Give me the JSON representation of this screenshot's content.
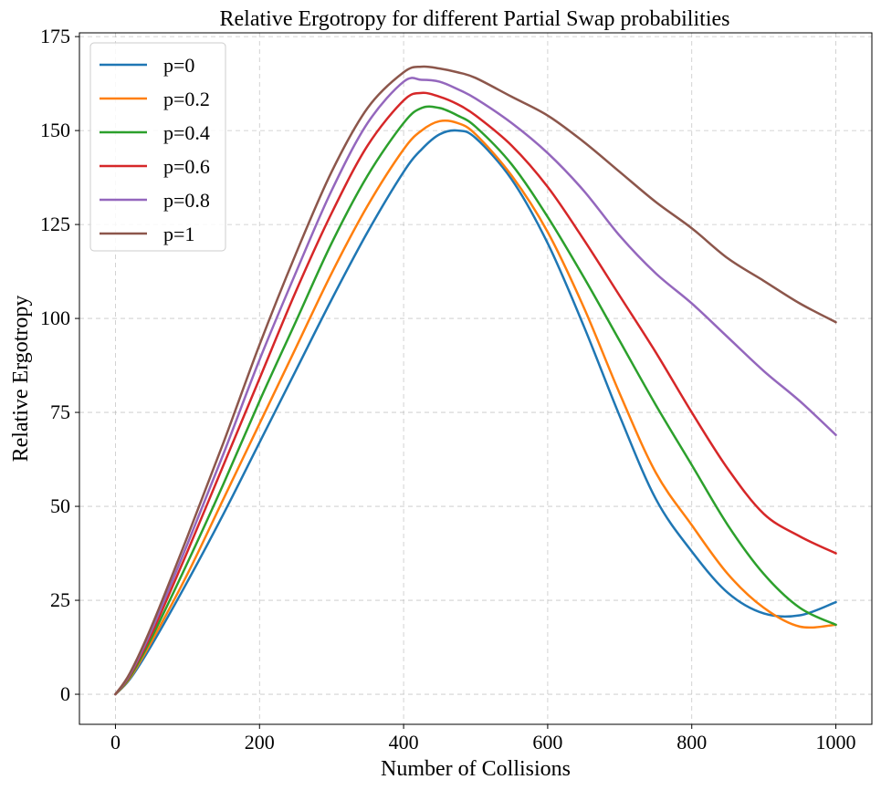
{
  "chart_data": {
    "type": "line",
    "title": "Relative Ergotropy for different Partial Swap probabilities",
    "xlabel": "Number of Collisions",
    "ylabel": "Relative Ergotropy",
    "xlim": [
      -50,
      1050
    ],
    "ylim": [
      -8,
      176
    ],
    "xticks": [
      0,
      200,
      400,
      600,
      800,
      1000
    ],
    "xtick_labels": [
      "0",
      "200",
      "400",
      "600",
      "800",
      "1000"
    ],
    "yticks": [
      0,
      25,
      50,
      75,
      100,
      125,
      150,
      175
    ],
    "ytick_labels": [
      "0",
      "25",
      "50",
      "75",
      "100",
      "125",
      "150",
      "175"
    ],
    "grid": true,
    "legend_position": "upper-left",
    "x": [
      0,
      20,
      50,
      100,
      150,
      200,
      250,
      300,
      350,
      400,
      425,
      450,
      475,
      500,
      550,
      600,
      650,
      700,
      750,
      800,
      850,
      900,
      950,
      1000
    ],
    "series": [
      {
        "name": "p=0",
        "color": "#1f77b4",
        "values": [
          0,
          4,
          13,
          30,
          48,
          67,
          86,
          105,
          123,
          139,
          145,
          149,
          150,
          148,
          137,
          120,
          98,
          74,
          52,
          38,
          27,
          21.5,
          21,
          24.5
        ]
      },
      {
        "name": "p=0.2",
        "color": "#ff7f0e",
        "values": [
          0,
          4.3,
          14,
          32,
          52,
          72,
          92,
          112,
          130,
          145,
          150,
          152.5,
          152,
          149,
          138,
          123,
          103,
          80,
          59,
          45,
          32,
          23,
          18,
          18.5
        ]
      },
      {
        "name": "p=0.4",
        "color": "#2ca02c",
        "values": [
          0,
          4.6,
          15,
          35,
          56,
          78,
          99,
          120,
          138,
          152,
          156,
          156,
          154,
          151,
          141,
          127,
          111,
          94,
          77,
          61,
          45,
          32,
          23,
          18.5
        ]
      },
      {
        "name": "p=0.6",
        "color": "#d62728",
        "values": [
          0,
          5,
          16,
          38,
          61,
          84,
          107,
          128,
          146,
          158,
          160,
          159,
          157,
          154,
          146,
          135,
          121,
          106,
          91,
          75,
          60,
          48,
          42,
          37.5
        ]
      },
      {
        "name": "p=0.8",
        "color": "#9467bd",
        "values": [
          0,
          5.3,
          17,
          40,
          64,
          89,
          112,
          134,
          152,
          163,
          163.5,
          163,
          161,
          158.5,
          152,
          144,
          134,
          122,
          112,
          104,
          95,
          86,
          78,
          69
        ]
      },
      {
        "name": "p=1",
        "color": "#8c564b",
        "values": [
          0,
          5.6,
          18,
          42,
          67,
          93,
          117,
          139,
          156,
          165.5,
          167,
          166.5,
          165.5,
          164,
          159,
          154,
          147,
          139,
          131,
          124,
          116,
          110,
          104,
          99
        ]
      }
    ]
  }
}
